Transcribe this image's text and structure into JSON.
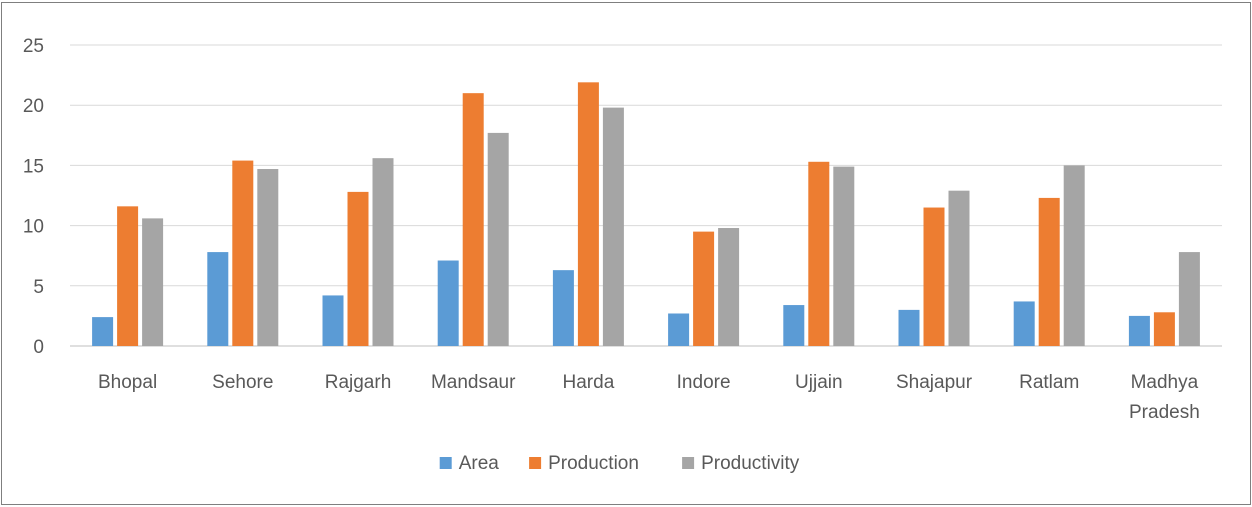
{
  "chart_data": {
    "type": "bar",
    "title": "",
    "xlabel": "",
    "ylabel": "",
    "ylim": [
      0,
      25
    ],
    "yticks": [
      0,
      5,
      10,
      15,
      20,
      25
    ],
    "grid": true,
    "legend_position": "bottom",
    "categories": [
      [
        "Bhopal"
      ],
      [
        "Sehore"
      ],
      [
        "Rajgarh"
      ],
      [
        "Mandsaur"
      ],
      [
        "Harda"
      ],
      [
        "Indore"
      ],
      [
        "Ujjain"
      ],
      [
        "Shajapur"
      ],
      [
        "Ratlam"
      ],
      [
        "Madhya",
        "Pradesh"
      ]
    ],
    "series": [
      {
        "name": "Area",
        "color": "#5b9bd5",
        "values": [
          2.4,
          7.8,
          4.2,
          7.1,
          6.3,
          2.7,
          3.4,
          3.0,
          3.7,
          2.5
        ]
      },
      {
        "name": "Production",
        "color": "#ed7d31",
        "values": [
          11.6,
          15.4,
          12.8,
          21.0,
          21.9,
          9.5,
          15.3,
          11.5,
          12.3,
          2.8
        ]
      },
      {
        "name": "Productivity",
        "color": "#a5a5a5",
        "values": [
          10.6,
          14.7,
          15.6,
          17.7,
          19.8,
          9.8,
          14.9,
          12.9,
          15.0,
          7.8
        ]
      }
    ]
  }
}
